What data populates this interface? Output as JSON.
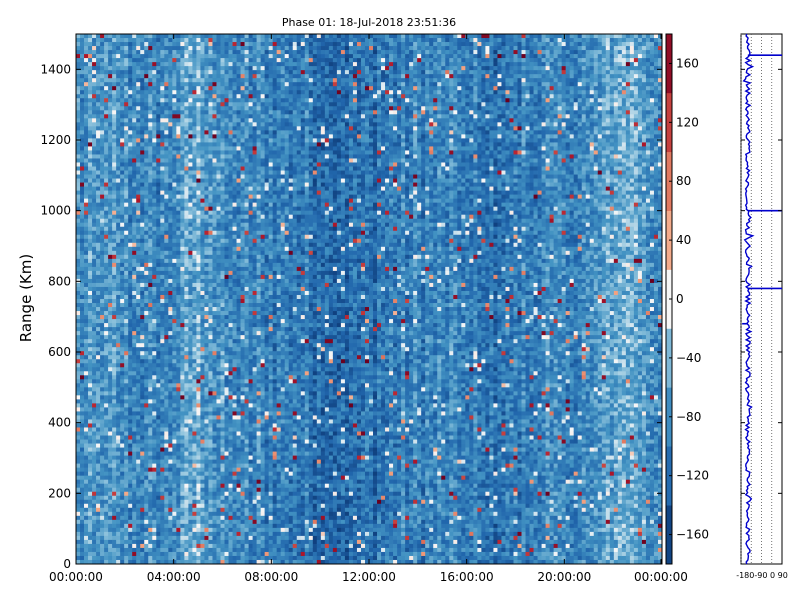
{
  "chart_data": [
    {
      "type": "heatmap",
      "title": "Phase 01: 18-Jul-2018 23:51:36",
      "xlabel": "",
      "ylabel": "Range (Km)",
      "x_ticks": [
        "00:00:00",
        "04:00:00",
        "08:00:00",
        "12:00:00",
        "16:00:00",
        "20:00:00",
        "00:00:00"
      ],
      "xlim_hours": [
        0,
        24
      ],
      "ylim": [
        0,
        1500
      ],
      "y_ticks": [
        0,
        200,
        400,
        600,
        800,
        1000,
        1200,
        1400
      ],
      "colorbar": {
        "range": [
          -180,
          180
        ],
        "ticks": [
          -160,
          -120,
          -80,
          -40,
          0,
          40,
          80,
          120,
          160
        ],
        "colormap": "RdBu_r",
        "low_color": "#08306b",
        "mid_color": "#f7f7f7",
        "high_color": "#67001f"
      },
      "data_summary": "Phase values mostly between -180 and -60 (blue), sparse red speckles near +120 to +180; lighter bands around 05:00 and 22:00-23:00, darker bands around 09:00-13:00 and 16:00-18:00."
    },
    {
      "type": "line",
      "title": "",
      "x_ticks_label": "-180-90 0 90",
      "x_ticks": [
        -180,
        -90,
        0,
        90
      ],
      "xlim": [
        -180,
        180
      ],
      "ylim": [
        0,
        1500
      ],
      "series_color": "#0000cc",
      "baseline_value": -120,
      "spikes": [
        {
          "range": 1440,
          "value": 180
        },
        {
          "range": 1000,
          "value": 180
        },
        {
          "range": 780,
          "value": 180
        },
        {
          "range": 680,
          "value": -170
        }
      ]
    }
  ]
}
